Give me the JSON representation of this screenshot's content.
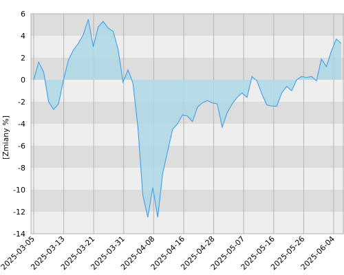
{
  "chart_data": {
    "type": "area",
    "title": "",
    "xlabel": "",
    "ylabel": "[Zmiany %]",
    "ylim": [
      -14,
      6
    ],
    "y_ticks": [
      6,
      4,
      2,
      0,
      -2,
      -4,
      -6,
      -8,
      -10,
      -12,
      -14
    ],
    "x_tick_labels": [
      "2025-03-05",
      "2025-03-13",
      "2025-03-21",
      "2025-03-31",
      "2025-04-08",
      "2025-04-16",
      "2025-04-28",
      "2025-05-07",
      "2025-05-16",
      "2025-05-26",
      "2025-06-04"
    ],
    "grid": true,
    "band_colors": [
      "#dddddd",
      "#eeeeee"
    ],
    "line_color": "#4aa3e8",
    "fill_color": "#add8e6",
    "series": [
      {
        "values": [
          0.0,
          1.6,
          0.7,
          -2.0,
          -2.7,
          -2.2,
          0.0,
          1.8,
          2.7,
          3.3,
          4.1,
          5.5,
          3.0,
          4.8,
          5.3,
          4.7,
          4.4,
          2.8,
          -0.2,
          0.9,
          -0.3,
          -4.3,
          -10.5,
          -12.5,
          -9.8,
          -12.5,
          -8.5,
          -6.5,
          -4.5,
          -4.0,
          -3.2,
          -3.3,
          -3.8,
          -2.5,
          -2.1,
          -1.9,
          -2.1,
          -2.2,
          -4.3,
          -3.0,
          -2.2,
          -1.6,
          -1.2,
          -1.6,
          0.3,
          -0.1,
          -1.3,
          -2.3,
          -2.4,
          -2.4,
          -1.2,
          -0.6,
          -1.0,
          0.0,
          0.3,
          0.2,
          0.3,
          -0.1,
          1.9,
          1.2,
          2.6,
          3.7,
          3.3
        ]
      }
    ]
  }
}
